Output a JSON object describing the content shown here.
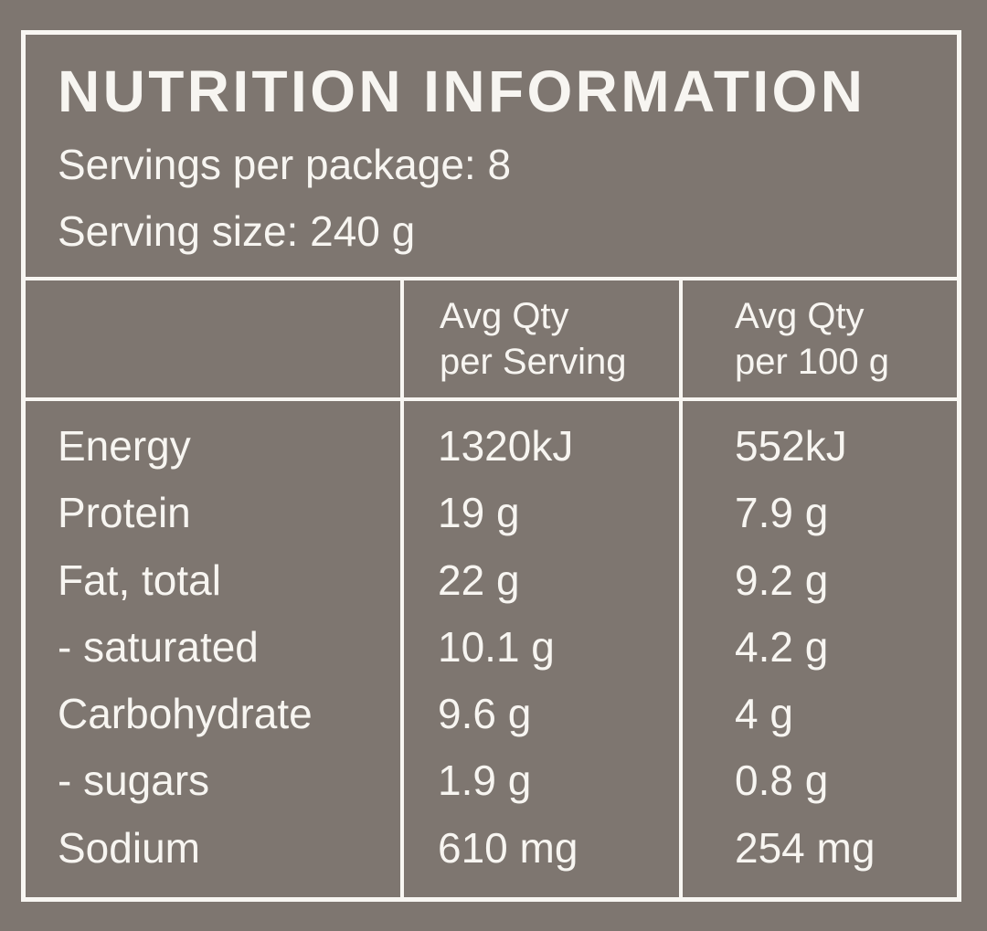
{
  "label": {
    "title": "NUTRITION INFORMATION",
    "servings_per_package": "Servings per package: 8",
    "serving_size": "Serving size: 240 g",
    "columns": [
      {
        "line1": "",
        "line2": ""
      },
      {
        "line1": "Avg Qty",
        "line2": "per Serving"
      },
      {
        "line1": "Avg Qty",
        "line2": "per 100 g"
      }
    ],
    "rows": [
      {
        "nutrient": "Energy",
        "per_serving": "1320kJ",
        "per_100g": "552kJ"
      },
      {
        "nutrient": "Protein",
        "per_serving": "19 g",
        "per_100g": "7.9 g"
      },
      {
        "nutrient": "Fat, total",
        "per_serving": "22 g",
        "per_100g": "9.2 g"
      },
      {
        "nutrient": "- saturated",
        "per_serving": "10.1 g",
        "per_100g": "4.2 g"
      },
      {
        "nutrient": "Carbohydrate",
        "per_serving": "9.6 g",
        "per_100g": "4 g"
      },
      {
        "nutrient": "- sugars",
        "per_serving": "1.9 g",
        "per_100g": "0.8 g"
      },
      {
        "nutrient": "Sodium",
        "per_serving": "610 mg",
        "per_100g": "254 mg"
      }
    ]
  },
  "colors": {
    "background": "#7e7670",
    "foreground": "#f8f6f2"
  }
}
